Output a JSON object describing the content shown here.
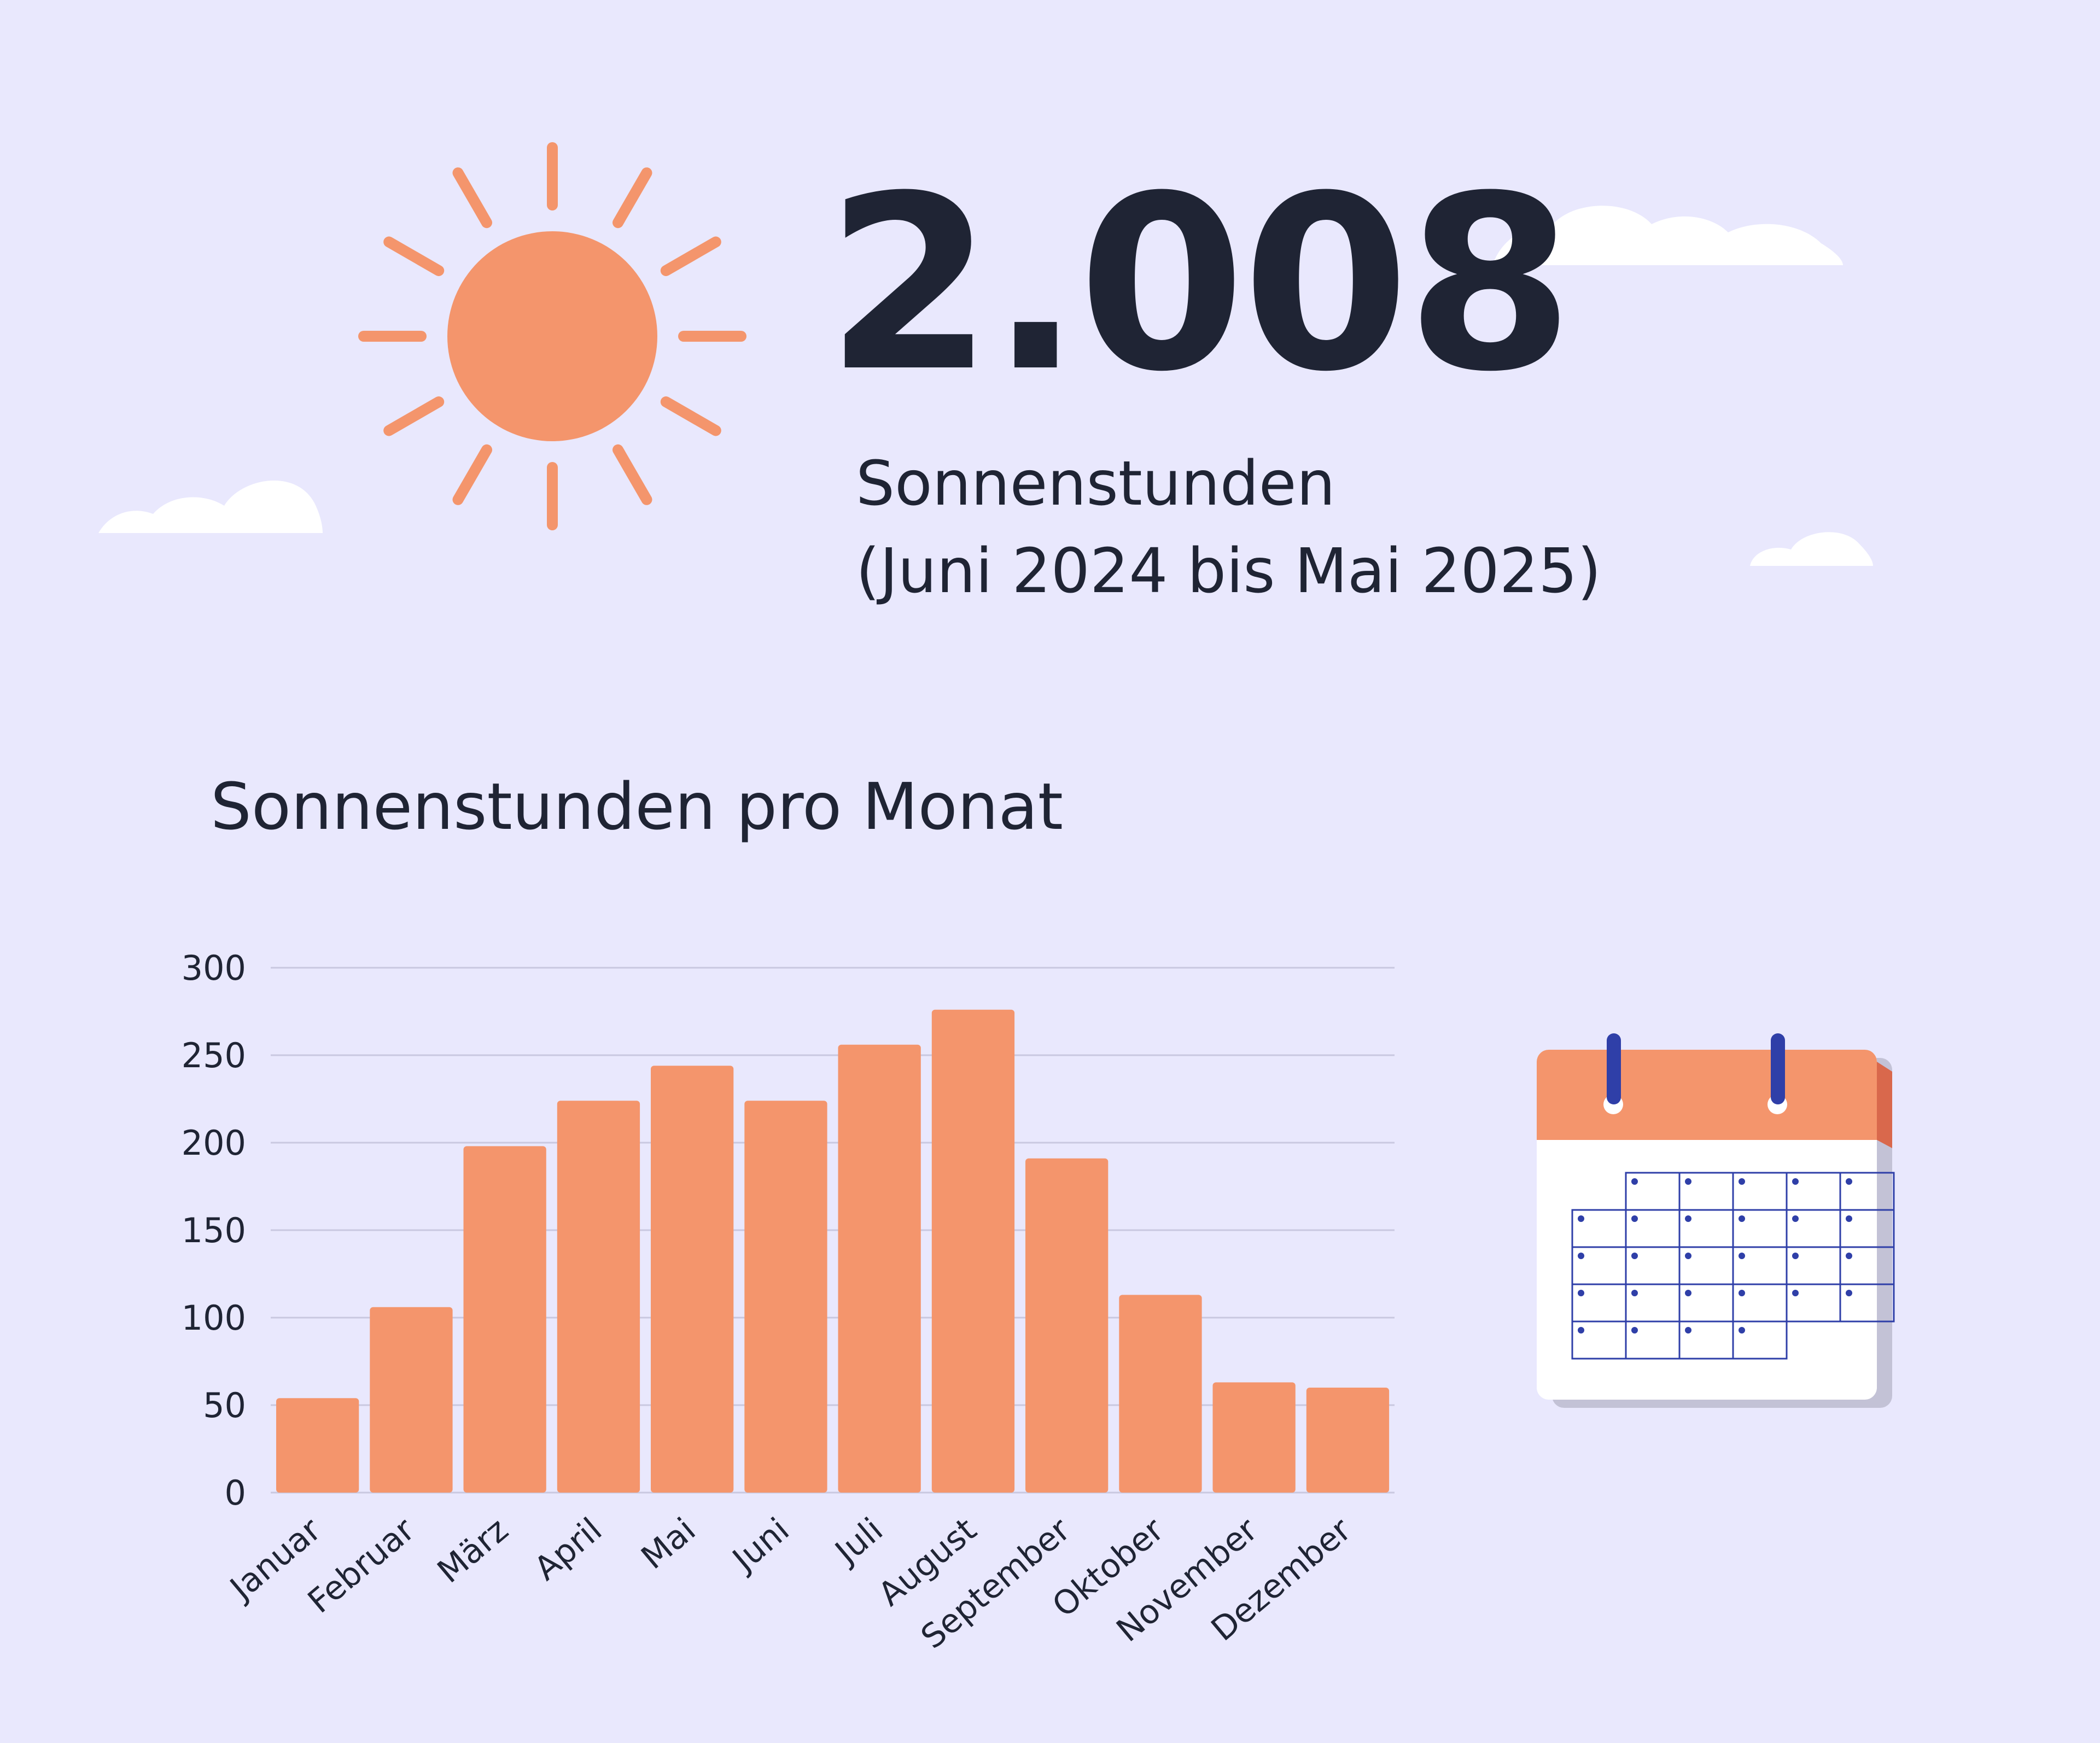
{
  "header": {
    "total_value": "2.008",
    "total_label_line1": "Sonnenstunden",
    "total_label_line2": "(Juni 2024 bis Mai 2025)"
  },
  "icons": {
    "sun": "sun-icon",
    "calendar": "calendar-icon",
    "cloud": "cloud-icon"
  },
  "colors": {
    "background": "#e9e8fd",
    "accent": "#f4956c",
    "text": "#1f2434",
    "grid": "#c9c8e0",
    "calendar_rings": "#2f3fa8",
    "calendar_shadow": "#c3c2d6"
  },
  "chart_data": {
    "type": "bar",
    "title": "Sonnenstunden pro Monat",
    "xlabel": "",
    "ylabel": "",
    "categories": [
      "Januar",
      "Februar",
      "März",
      "April",
      "Mai",
      "Juni",
      "Juli",
      "August",
      "September",
      "Oktober",
      "November",
      "Dezember"
    ],
    "values": [
      54,
      106,
      198,
      224,
      244,
      224,
      256,
      276,
      191,
      113,
      63,
      60
    ],
    "ylim": [
      0,
      300
    ],
    "yticks": [
      0,
      50,
      100,
      150,
      200,
      250,
      300
    ],
    "grid": true,
    "legend": "none",
    "bar_color": "#f4956c"
  }
}
